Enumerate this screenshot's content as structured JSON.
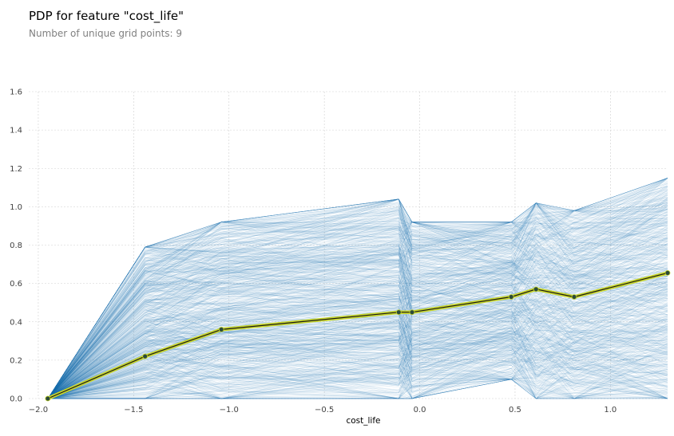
{
  "title": "PDP for feature \"cost_life\"",
  "subtitle": "Number of unique grid points: 9",
  "chart_data": {
    "type": "line",
    "title": "PDP for feature \"cost_life\"",
    "subtitle": "Number of unique grid points: 9",
    "xlabel": "cost_life",
    "ylabel": "",
    "xlim": [
      -2.05,
      1.3
    ],
    "ylim": [
      0.0,
      1.6
    ],
    "xticks": [
      -2.0,
      -1.5,
      -1.0,
      -0.5,
      0.0,
      0.5,
      1.0
    ],
    "xtick_labels": [
      "−2.0",
      "−1.5",
      "−1.0",
      "−0.5",
      "0.0",
      "0.5",
      "1.0"
    ],
    "yticks": [
      0.0,
      0.2,
      0.4,
      0.6,
      0.8,
      1.0,
      1.2,
      1.4,
      1.6
    ],
    "ytick_labels": [
      "0.0",
      "0.2",
      "0.4",
      "0.6",
      "0.8",
      "1.0",
      "1.2",
      "1.4",
      "1.6"
    ],
    "grid": true,
    "x": [
      -1.95,
      -1.44,
      -1.04,
      -0.11,
      -0.04,
      0.48,
      0.61,
      0.81,
      1.3
    ],
    "series": [
      {
        "values": [
          0.0,
          0.22,
          0.36,
          0.45,
          0.45,
          0.53,
          0.57,
          0.53,
          0.655
        ]
      }
    ],
    "ice_band": {
      "upper": [
        0.0,
        0.79,
        0.92,
        1.04,
        0.92,
        0.92,
        1.02,
        0.98,
        1.15
      ],
      "lower": [
        0.0,
        0.0,
        0.0,
        0.0,
        0.0,
        0.1,
        0.0,
        0.0,
        0.0
      ]
    },
    "colors": {
      "ice_lines": "#1f77b4",
      "pdp_line": "#1a1a1a",
      "pdp_highlight": "#c8d62a",
      "grid": "#d0d0d0"
    }
  }
}
